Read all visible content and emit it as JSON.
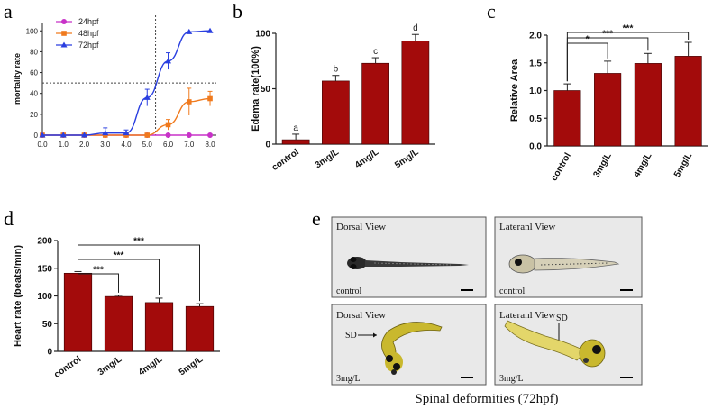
{
  "colors": {
    "bar": "#a30b0b",
    "purple": "#c832c8",
    "orange": "#f07a1e",
    "blue": "#2a3fe0"
  },
  "panels": {
    "a": "a",
    "b": "b",
    "c": "c",
    "d": "d",
    "e": "e"
  },
  "chart_data": [
    {
      "panel": "a",
      "type": "line",
      "title": "",
      "xlabel": "",
      "ylabel": "mortality rate",
      "xlim": [
        0,
        8.3
      ],
      "ylim": [
        0,
        108
      ],
      "xticks": [
        "0.0",
        "1.0",
        "2.0",
        "3.0",
        "4.0",
        "5.0",
        "6.0",
        "7.0",
        "8.0"
      ],
      "yticks": [
        "0",
        "20",
        "40",
        "60",
        "80",
        "100"
      ],
      "reference_lines": {
        "x": 5.4,
        "y": 50
      },
      "legend": "top-left",
      "series": [
        {
          "name": "24hpf",
          "marker": "circle",
          "x": [
            0,
            1,
            2,
            3,
            4,
            5,
            6,
            7,
            8
          ],
          "y": [
            0,
            0,
            0,
            0,
            0,
            0,
            0,
            0,
            0
          ],
          "err": [
            0,
            0,
            0,
            0,
            0,
            0,
            0,
            3,
            0
          ]
        },
        {
          "name": "48hpf",
          "marker": "square",
          "x": [
            0,
            1,
            2,
            3,
            4,
            5,
            6,
            7,
            8
          ],
          "y": [
            0,
            0,
            0,
            0,
            0,
            0,
            10,
            32,
            35
          ],
          "err": [
            0,
            0,
            0,
            0,
            0,
            0,
            5,
            13,
            7
          ]
        },
        {
          "name": "72hpf",
          "marker": "triangle",
          "x": [
            0,
            1,
            2,
            3,
            4,
            5,
            6,
            7,
            8
          ],
          "y": [
            0,
            0,
            0,
            2,
            2,
            36,
            71,
            99,
            100
          ],
          "err": [
            0,
            0,
            0,
            5,
            3,
            8,
            8,
            0,
            0
          ]
        }
      ]
    },
    {
      "panel": "b",
      "type": "bar",
      "title": "",
      "xlabel": "",
      "ylabel": "Edema rate(100%)",
      "ylim": [
        0,
        100
      ],
      "yticks": [
        "0",
        "50",
        "100"
      ],
      "categories": [
        "control",
        "3mg/L",
        "4mg/L",
        "5mg/L"
      ],
      "values": [
        4,
        57,
        73,
        93
      ],
      "errors": [
        5,
        5,
        5,
        6
      ],
      "annotations": [
        "a",
        "b",
        "c",
        "d"
      ]
    },
    {
      "panel": "c",
      "type": "bar",
      "title": "",
      "xlabel": "",
      "ylabel": "Relative Area",
      "ylim": [
        0,
        2.0
      ],
      "yticks": [
        "0.0",
        "0.5",
        "1.0",
        "1.5",
        "2.0"
      ],
      "categories": [
        "control",
        "3mg/L",
        "4mg/L",
        "5mg/L"
      ],
      "values": [
        1.0,
        1.31,
        1.49,
        1.62
      ],
      "errors": [
        0.12,
        0.22,
        0.18,
        0.25
      ],
      "significance": [
        "*",
        "***",
        "***"
      ]
    },
    {
      "panel": "d",
      "type": "bar",
      "title": "",
      "xlabel": "",
      "ylabel": "Heart rate (beats/min)",
      "ylim": [
        0,
        200
      ],
      "yticks": [
        "0",
        "50",
        "100",
        "150",
        "200"
      ],
      "categories": [
        "control",
        "3mg/L",
        "4mg/L",
        "5mg/L"
      ],
      "values": [
        141,
        99,
        88,
        81
      ],
      "errors": [
        3,
        2,
        8,
        5
      ],
      "significance": [
        "***",
        "***",
        "***"
      ]
    }
  ],
  "panel_e": {
    "caption": "Spinal deformities (72hpf)",
    "images": [
      {
        "view": "Dorsal View",
        "label": "control",
        "annotation": ""
      },
      {
        "view": "Lateranl View",
        "label": "control",
        "annotation": ""
      },
      {
        "view": "Dorsal View",
        "label": "3mg/L",
        "annotation": "SD"
      },
      {
        "view": "Lateranl View",
        "label": "3mg/L",
        "annotation": "SD"
      }
    ]
  }
}
